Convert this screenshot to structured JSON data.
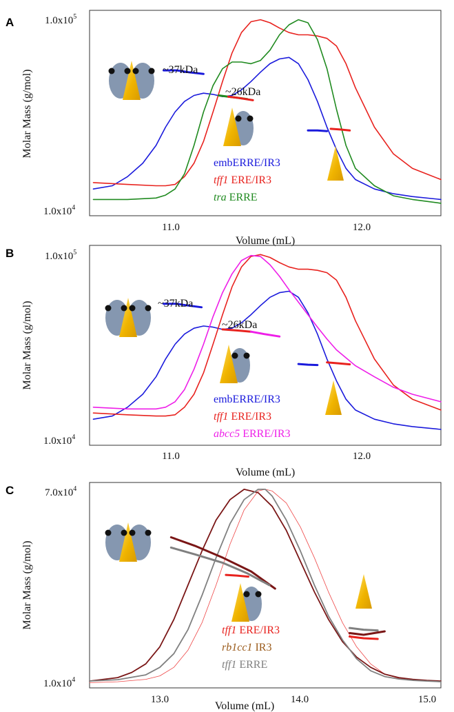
{
  "chart_data": [
    {
      "panel": "A",
      "type": "line",
      "xlabel": "Volume (mL)",
      "ylabel": "Molar Mass (g/mol)",
      "ytick_labels": [
        "1.0x10^5",
        "1.0x10^4"
      ],
      "xticks": [
        11.0,
        12.0
      ],
      "xtick_labels": [
        "11.0",
        "12.0"
      ],
      "xlim": [
        10.6,
        12.45
      ],
      "ylim": [
        10000,
        100000
      ],
      "yscale": "log",
      "annotations": [
        "~37kDa",
        "~26kDa"
      ],
      "series": [
        {
          "name": "embERRE/IR3",
          "color": "#1a1adc",
          "x": [
            10.62,
            10.72,
            10.8,
            10.88,
            10.95,
            11.0,
            11.05,
            11.1,
            11.15,
            11.2,
            11.25,
            11.3,
            11.35,
            11.4,
            11.45,
            11.5,
            11.55,
            11.6,
            11.65,
            11.7,
            11.75,
            11.8,
            11.85,
            11.9,
            11.95,
            12.0,
            12.1,
            12.2,
            12.3,
            12.45
          ],
          "y": [
            13500,
            14000,
            15500,
            18000,
            22000,
            27000,
            32000,
            36000,
            38500,
            39500,
            39000,
            38000,
            38500,
            41000,
            45000,
            50000,
            55000,
            58000,
            59000,
            55000,
            46000,
            36000,
            27000,
            21000,
            17000,
            15000,
            13500,
            12800,
            12400,
            12000
          ]
        },
        {
          "name": "tff1 ERE/IR3",
          "color": "#e8221e",
          "x": [
            10.62,
            10.8,
            10.95,
            11.0,
            11.05,
            11.1,
            11.15,
            11.2,
            11.25,
            11.3,
            11.35,
            11.4,
            11.45,
            11.5,
            11.55,
            11.6,
            11.65,
            11.7,
            11.75,
            11.8,
            11.85,
            11.9,
            11.95,
            12.0,
            12.1,
            12.2,
            12.3,
            12.45
          ],
          "y": [
            14500,
            14200,
            14000,
            14000,
            14200,
            15500,
            18000,
            23000,
            32000,
            45000,
            62000,
            78000,
            88000,
            90000,
            87000,
            82000,
            78000,
            76000,
            76000,
            75000,
            73000,
            67000,
            55000,
            42000,
            27000,
            20000,
            17000,
            15000
          ]
        },
        {
          "name": "tra ERRE",
          "color": "#1f8a1f",
          "x": [
            10.62,
            10.8,
            10.95,
            11.0,
            11.05,
            11.1,
            11.15,
            11.2,
            11.25,
            11.3,
            11.35,
            11.4,
            11.45,
            11.5,
            11.55,
            11.6,
            11.65,
            11.7,
            11.75,
            11.8,
            11.85,
            11.9,
            11.95,
            12.0,
            12.1,
            12.2,
            12.3,
            12.45
          ],
          "y": [
            12000,
            12000,
            12200,
            12600,
            13500,
            16000,
            22000,
            32000,
            43000,
            52000,
            56000,
            56000,
            55000,
            57000,
            64000,
            76000,
            85000,
            90000,
            87000,
            72000,
            52000,
            33000,
            22000,
            17000,
            14000,
            12500,
            12000,
            11500
          ]
        }
      ],
      "fragments": [
        {
          "color": "#1a1adc",
          "x": [
            10.99,
            11.06,
            11.12,
            11.2
          ],
          "y": [
            51000,
            51000,
            50000,
            49000
          ]
        },
        {
          "color": "#1a1adc",
          "x": [
            11.75,
            11.8,
            11.85
          ],
          "y": [
            26000,
            26000,
            25800
          ]
        },
        {
          "color": "#1f8a1f",
          "x": [
            11.28,
            11.33,
            11.38,
            11.43
          ],
          "y": [
            38500,
            38000,
            37500,
            37000
          ]
        },
        {
          "color": "#e8221e",
          "x": [
            11.33,
            11.38,
            11.42,
            11.46
          ],
          "y": [
            38000,
            37500,
            37000,
            36500
          ]
        },
        {
          "color": "#e8221e",
          "x": [
            11.87,
            11.92,
            11.97
          ],
          "y": [
            26500,
            26300,
            26000
          ]
        }
      ]
    },
    {
      "panel": "B",
      "type": "line",
      "xlabel": "Volume (mL)",
      "ylabel": "Molar Mass (g/mol)",
      "ytick_labels": [
        "1.0x10^5",
        "1.0x10^4"
      ],
      "xticks": [
        11.0,
        12.0
      ],
      "xtick_labels": [
        "11.0",
        "12.0"
      ],
      "xlim": [
        10.6,
        12.45
      ],
      "ylim": [
        10000,
        100000
      ],
      "yscale": "log",
      "annotations": [
        "~37kDa",
        "~26kDa"
      ],
      "series": [
        {
          "name": "embERRE/IR3",
          "color": "#1a1adc",
          "x": [
            10.62,
            10.72,
            10.8,
            10.88,
            10.95,
            11.0,
            11.05,
            11.1,
            11.15,
            11.2,
            11.25,
            11.3,
            11.35,
            11.4,
            11.45,
            11.5,
            11.55,
            11.6,
            11.65,
            11.7,
            11.75,
            11.8,
            11.85,
            11.9,
            11.95,
            12.0,
            12.1,
            12.2,
            12.3,
            12.45
          ],
          "y": [
            13500,
            14000,
            15500,
            18000,
            22000,
            27000,
            32000,
            36000,
            38500,
            39500,
            39000,
            38000,
            38500,
            41000,
            45000,
            50000,
            55000,
            58000,
            59000,
            55000,
            46000,
            36000,
            27000,
            21000,
            17000,
            15000,
            13500,
            12800,
            12400,
            12000
          ]
        },
        {
          "name": "tff1 ERE/IR3",
          "color": "#e8221e",
          "x": [
            10.62,
            10.8,
            10.95,
            11.0,
            11.05,
            11.1,
            11.15,
            11.2,
            11.25,
            11.3,
            11.35,
            11.4,
            11.45,
            11.5,
            11.55,
            11.6,
            11.65,
            11.7,
            11.75,
            11.8,
            11.85,
            11.9,
            11.95,
            12.0,
            12.1,
            12.2,
            12.3,
            12.45
          ],
          "y": [
            14500,
            14200,
            14000,
            14000,
            14200,
            15500,
            18000,
            23000,
            32000,
            45000,
            62000,
            78000,
            88000,
            90000,
            87000,
            82000,
            78000,
            76000,
            76000,
            75000,
            73000,
            67000,
            55000,
            42000,
            27000,
            20000,
            17000,
            15000
          ]
        },
        {
          "name": "abcc5 ERRE/IR3",
          "color": "#ee1ee8",
          "x": [
            10.62,
            10.8,
            10.95,
            11.0,
            11.05,
            11.1,
            11.15,
            11.2,
            11.25,
            11.3,
            11.35,
            11.4,
            11.45,
            11.5,
            11.55,
            11.6,
            11.65,
            11.7,
            11.75,
            11.8,
            11.85,
            11.9,
            12.0,
            12.1,
            12.2,
            12.3,
            12.45
          ],
          "y": [
            15500,
            15200,
            15200,
            15500,
            16500,
            19000,
            24000,
            32000,
            44000,
            58000,
            72000,
            84000,
            89000,
            88000,
            80000,
            70000,
            60000,
            52000,
            45000,
            39000,
            34000,
            30000,
            25000,
            22000,
            19500,
            18000,
            16500
          ]
        }
      ],
      "fragments": [
        {
          "color": "#1a1adc",
          "x": [
            10.99,
            11.06,
            11.12,
            11.19
          ],
          "y": [
            51000,
            51000,
            50000,
            49000
          ]
        },
        {
          "color": "#1a1adc",
          "x": [
            11.7,
            11.75,
            11.8
          ],
          "y": [
            25500,
            25300,
            25200
          ]
        },
        {
          "color": "#e8221e",
          "x": [
            11.3,
            11.38,
            11.45
          ],
          "y": [
            38000,
            37500,
            37000
          ]
        },
        {
          "color": "#ee1ee8",
          "x": [
            11.45,
            11.52,
            11.6
          ],
          "y": [
            37000,
            36000,
            35000
          ]
        },
        {
          "color": "#e8221e",
          "x": [
            11.85,
            11.91,
            11.97
          ],
          "y": [
            26000,
            25700,
            25400
          ]
        }
      ]
    },
    {
      "panel": "C",
      "type": "line",
      "xlabel": "Volume (mL)",
      "ylabel": "Molar Mass (g/mol)",
      "ytick_labels": [
        "7.0x10^4",
        "1.0x10^4"
      ],
      "xticks": [
        13.0,
        14.0,
        15.0
      ],
      "xtick_labels": [
        "13.0",
        "14.0",
        "15.0"
      ],
      "xlim": [
        12.5,
        15.0
      ],
      "ylim": [
        10000,
        70000
      ],
      "yscale": "linear",
      "series": [
        {
          "name": "tff1 ERE/IR3",
          "color": "#ee4545",
          "stroke_width": 0.8,
          "x": [
            12.5,
            12.7,
            12.9,
            13.0,
            13.1,
            13.2,
            13.3,
            13.4,
            13.5,
            13.6,
            13.7,
            13.75,
            13.8,
            13.9,
            14.0,
            14.1,
            14.2,
            14.3,
            14.4,
            14.5,
            14.6,
            14.7,
            14.8,
            14.9,
            15.0
          ],
          "y": [
            11500,
            11800,
            12500,
            13500,
            16000,
            21000,
            29000,
            40000,
            52000,
            62000,
            67500,
            68000,
            67500,
            64000,
            57000,
            48000,
            38000,
            29000,
            22000,
            17000,
            14000,
            12800,
            12200,
            12000,
            11800
          ]
        },
        {
          "name": "rb1cc1 IR3",
          "color": "#7a1616",
          "stroke_width": 1.8,
          "x": [
            12.5,
            12.7,
            12.8,
            12.9,
            13.0,
            13.1,
            13.2,
            13.3,
            13.4,
            13.5,
            13.6,
            13.7,
            13.8,
            13.9,
            14.0,
            14.1,
            14.2,
            14.3,
            14.4,
            14.5,
            14.6,
            14.7,
            14.8,
            14.9,
            15.0
          ],
          "y": [
            12000,
            13000,
            14500,
            17000,
            22000,
            30000,
            40000,
            50000,
            59000,
            65000,
            68000,
            67000,
            63000,
            56000,
            47000,
            38000,
            30000,
            23500,
            19000,
            16000,
            14000,
            13000,
            12500,
            12200,
            12000
          ]
        },
        {
          "name": "tff1 ERRE",
          "color": "#808080",
          "stroke_width": 1.8,
          "x": [
            12.5,
            12.7,
            12.9,
            13.0,
            13.1,
            13.2,
            13.3,
            13.4,
            13.5,
            13.6,
            13.7,
            13.75,
            13.8,
            13.9,
            14.0,
            14.1,
            14.2,
            14.3,
            14.4,
            14.5,
            14.6,
            14.7,
            14.8,
            14.9,
            15.0
          ],
          "y": [
            12000,
            12400,
            13800,
            16000,
            20000,
            27000,
            37000,
            48000,
            58000,
            65000,
            68000,
            68000,
            66000,
            59000,
            50000,
            40000,
            31000,
            24000,
            18500,
            15000,
            13300,
            12600,
            12200,
            12000,
            11800
          ]
        }
      ],
      "fragments": [
        {
          "color": "#7a1616",
          "x": [
            13.08,
            13.25,
            13.45,
            13.65,
            13.82
          ],
          "y": [
            54000,
            51500,
            48000,
            44000,
            39000
          ]
        },
        {
          "color": "#808080",
          "x": [
            13.08,
            13.25,
            13.45,
            13.62,
            13.78
          ],
          "y": [
            51000,
            49000,
            46500,
            43500,
            40000
          ]
        },
        {
          "color": "#e8221e",
          "x": [
            13.47,
            13.55,
            13.63
          ],
          "y": [
            43000,
            42800,
            42500
          ]
        },
        {
          "color": "#808080",
          "x": [
            14.35,
            14.45,
            14.55
          ],
          "y": [
            27500,
            27000,
            26800
          ]
        },
        {
          "color": "#7a1616",
          "x": [
            14.35,
            14.45,
            14.6
          ],
          "y": [
            26000,
            25500,
            26500
          ]
        },
        {
          "color": "#e8221e",
          "x": [
            14.35,
            14.45,
            14.55
          ],
          "y": [
            25000,
            24500,
            24300
          ]
        }
      ]
    }
  ],
  "panels": {
    "A": {
      "letter": "A",
      "ytick_top": "1.0x10",
      "ytick_top_exp": "5",
      "ytick_bottom": "1.0x10",
      "ytick_bottom_exp": "4",
      "xtick_1": "11.0",
      "xtick_2": "12.0",
      "ylabel": "Molar Mass (g/mol)",
      "xlabel": "Volume (mL)",
      "annot_37": "~37kDa",
      "annot_26": "~26kDa",
      "legend": [
        {
          "italic": "",
          "rest": "embERRE/IR3",
          "color": "#1a1adc"
        },
        {
          "italic": "tff1",
          "rest": " ERE/IR3",
          "color": "#e8221e"
        },
        {
          "italic": "tra",
          "rest": " ERRE",
          "color": "#1f8a1f"
        }
      ]
    },
    "B": {
      "letter": "B",
      "ytick_top": "1.0x10",
      "ytick_top_exp": "5",
      "ytick_bottom": "1.0x10",
      "ytick_bottom_exp": "4",
      "xtick_1": "11.0",
      "xtick_2": "12.0",
      "ylabel": "Molar Mass (g/mol)",
      "xlabel": "Volume (mL)",
      "annot_37": "~37kDa",
      "annot_26": "~26kDa",
      "legend": [
        {
          "italic": "",
          "rest": "embERRE/IR3",
          "color": "#1a1adc"
        },
        {
          "italic": "tff1",
          "rest": " ERE/IR3",
          "color": "#e8221e"
        },
        {
          "italic": "abcc5",
          "rest": " ERRE/IR3",
          "color": "#ee1ee8"
        }
      ]
    },
    "C": {
      "letter": "C",
      "ytick_top": "7.0x10",
      "ytick_top_exp": "4",
      "ytick_bottom": "1.0x10",
      "ytick_bottom_exp": "4",
      "xtick_1": "13.0",
      "xtick_2": "14.0",
      "xtick_3": "15.0",
      "ylabel": "Molar Mass (g/mol)",
      "xlabel": "Volume (mL)",
      "legend": [
        {
          "italic": "tff1",
          "rest": " ERE/IR3",
          "color": "#e8221e"
        },
        {
          "italic": "rb1cc1",
          "rest": " IR3",
          "color": "#9a5a1a"
        },
        {
          "italic": "tff1",
          "rest": " ERRE",
          "color": "#808080"
        }
      ]
    }
  },
  "colors": {
    "protein_body": "#8597b0",
    "dna_triangle": "#f0b400",
    "dna_triangle_light": "#ffd84a",
    "dot": "#111111"
  },
  "icons": [
    "er-dimer-icon",
    "er-monomer-icon",
    "dna-triangle-icon"
  ]
}
